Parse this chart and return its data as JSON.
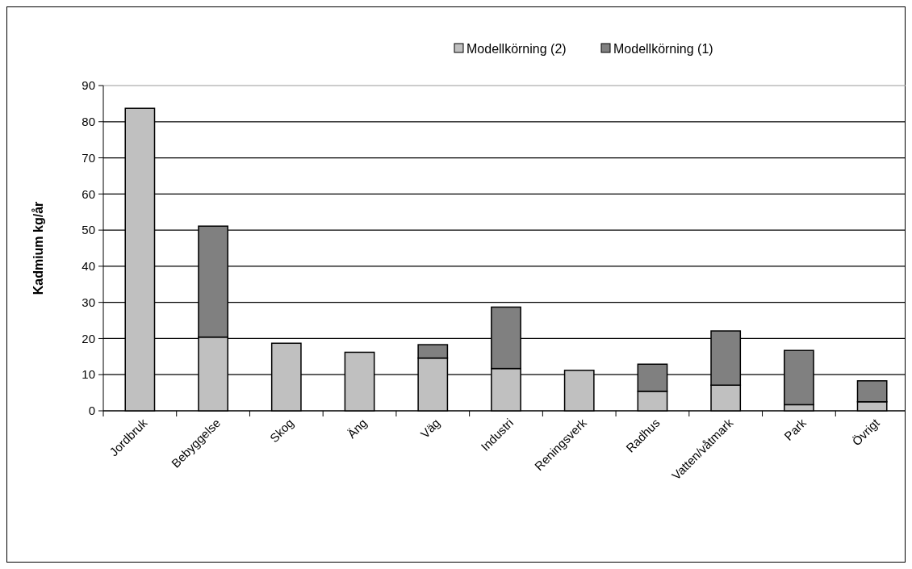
{
  "chart_data": {
    "type": "bar",
    "ylabel": "Kadmium kg/år",
    "stacked": true,
    "categories": [
      "Jordbruk",
      "Bebyggelse",
      "Skog",
      "Äng",
      "Väg",
      "Industri",
      "Reningsverk",
      "Radhus",
      "Vatten/våtmark",
      "Park",
      "Övrigt"
    ],
    "series": [
      {
        "name": "Modellkörning (2)",
        "color": "#c0c0c0",
        "values": [
          83.7,
          20.4,
          18.7,
          16.2,
          14.6,
          11.7,
          11.2,
          5.4,
          7.1,
          1.7,
          2.5
        ]
      },
      {
        "name": "Modellkörning (1)",
        "color": "#808080",
        "values": [
          0,
          30.7,
          0,
          0,
          3.7,
          17.0,
          0,
          7.5,
          15.0,
          15.0,
          5.8
        ]
      }
    ],
    "ylim": [
      0,
      90
    ],
    "yticks": [
      0,
      10,
      20,
      30,
      40,
      50,
      60,
      70,
      80,
      90
    ],
    "grid": "y",
    "legend": "top"
  }
}
